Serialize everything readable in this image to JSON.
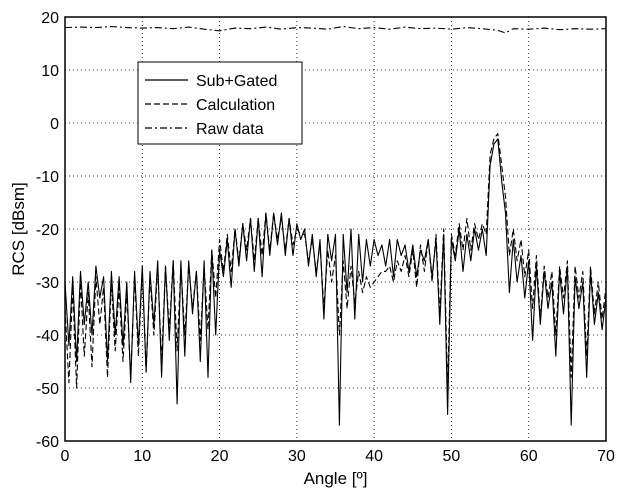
{
  "chart_data": {
    "type": "line",
    "title": "",
    "xlabel": "Angle [º]",
    "ylabel": "RCS [dBsm]",
    "xlim": [
      0,
      70
    ],
    "ylim": [
      -60,
      20
    ],
    "xticks": [
      "0",
      "10",
      "20",
      "30",
      "40",
      "50",
      "60",
      "70"
    ],
    "yticks": [
      "20",
      "10",
      "0",
      "-10",
      "-20",
      "-30",
      "-40",
      "-50",
      "-60"
    ],
    "grid": true,
    "legend_position": "upper-left",
    "series": [
      {
        "name": "Sub+Gated",
        "style": "solid",
        "x": [
          0,
          0.5,
          1,
          1.5,
          2,
          2.5,
          3,
          3.5,
          4,
          4.5,
          5,
          5.5,
          6,
          6.5,
          7,
          7.5,
          8,
          8.5,
          9,
          9.5,
          10,
          10.5,
          11,
          11.5,
          12,
          12.5,
          13,
          13.5,
          14,
          14.5,
          15,
          15.5,
          16,
          16.5,
          17,
          17.5,
          18,
          18.5,
          19,
          19.5,
          20,
          20.5,
          21,
          21.5,
          22,
          22.5,
          23,
          23.5,
          24,
          24.5,
          25,
          25.5,
          26,
          26.5,
          27,
          27.5,
          28,
          28.5,
          29,
          29.5,
          30,
          30.5,
          31,
          31.5,
          32,
          32.5,
          33,
          33.5,
          34,
          34.5,
          35,
          35.5,
          36,
          36.5,
          37,
          37.5,
          38,
          38.5,
          39,
          39.5,
          40,
          40.5,
          41,
          41.5,
          42,
          42.5,
          43,
          43.5,
          44,
          44.5,
          45,
          45.5,
          46,
          46.5,
          47,
          47.5,
          48,
          48.5,
          49,
          49.5,
          50,
          50.5,
          51,
          51.5,
          52,
          52.5,
          53,
          53.5,
          54,
          54.5,
          55,
          55.5,
          56,
          56.5,
          57,
          57.5,
          58,
          58.5,
          59,
          59.5,
          60,
          60.5,
          61,
          61.5,
          62,
          62.5,
          63,
          63.5,
          64,
          64.5,
          65,
          65.5,
          66,
          66.5,
          67,
          67.5,
          68,
          68.5,
          69,
          69.5,
          70
        ],
        "y": [
          -30,
          -42,
          -29,
          -45,
          -28,
          -38,
          -30,
          -40,
          -27,
          -33,
          -29,
          -45,
          -28,
          -40,
          -29,
          -42,
          -30,
          -49,
          -28,
          -42,
          -27,
          -47,
          -28,
          -38,
          -26,
          -48,
          -27,
          -41,
          -26,
          -53,
          -26,
          -44,
          -26,
          -36,
          -28,
          -45,
          -26,
          -48,
          -24,
          -40,
          -24,
          -29,
          -22,
          -31,
          -20,
          -27,
          -19,
          -26,
          -18,
          -28,
          -18,
          -29,
          -17,
          -25,
          -17,
          -23,
          -17,
          -25,
          -18,
          -25,
          -19,
          -22,
          -20,
          -27,
          -21,
          -29,
          -22,
          -37,
          -21,
          -26,
          -21,
          -57,
          -21,
          -32,
          -20,
          -37,
          -21,
          -30,
          -22,
          -27,
          -22,
          -25,
          -23,
          -27,
          -22,
          -29,
          -22,
          -25,
          -23,
          -28,
          -23,
          -29,
          -24,
          -26,
          -22,
          -29,
          -22,
          -38,
          -21,
          -55,
          -22,
          -26,
          -20,
          -28,
          -21,
          -26,
          -20,
          -24,
          -20,
          -25,
          -8,
          -4,
          -3,
          -11,
          -17,
          -32,
          -22,
          -30,
          -25,
          -33,
          -26,
          -41,
          -27,
          -38,
          -28,
          -35,
          -30,
          -44,
          -28,
          -36,
          -27,
          -57,
          -29,
          -35,
          -30,
          -48,
          -28,
          -38,
          -32,
          -39,
          -33
        ]
      },
      {
        "name": "Calculation",
        "style": "dashed",
        "x": [
          0,
          0.5,
          1,
          1.5,
          2,
          2.5,
          3,
          3.5,
          4,
          4.5,
          5,
          5.5,
          6,
          6.5,
          7,
          7.5,
          8,
          8.5,
          9,
          9.5,
          10,
          10.5,
          11,
          11.5,
          12,
          12.5,
          13,
          13.5,
          14,
          14.5,
          15,
          15.5,
          16,
          16.5,
          17,
          17.5,
          18,
          18.5,
          19,
          19.5,
          20,
          20.5,
          21,
          21.5,
          22,
          22.5,
          23,
          23.5,
          24,
          24.5,
          25,
          25.5,
          26,
          26.5,
          27,
          27.5,
          28,
          28.5,
          29,
          29.5,
          30,
          30.5,
          31,
          31.5,
          32,
          32.5,
          33,
          33.5,
          34,
          34.5,
          35,
          35.5,
          36,
          36.5,
          37,
          37.5,
          38,
          38.5,
          39,
          39.5,
          40,
          40.5,
          41,
          41.5,
          42,
          42.5,
          43,
          43.5,
          44,
          44.5,
          45,
          45.5,
          46,
          46.5,
          47,
          47.5,
          48,
          48.5,
          49,
          49.5,
          50,
          50.5,
          51,
          51.5,
          52,
          52.5,
          53,
          53.5,
          54,
          54.5,
          55,
          55.5,
          56,
          56.5,
          57,
          57.5,
          58,
          58.5,
          59,
          59.5,
          60,
          60.5,
          61,
          61.5,
          62,
          62.5,
          63,
          63.5,
          64,
          64.5,
          65,
          65.5,
          66,
          66.5,
          67,
          67.5,
          68,
          68.5,
          69,
          69.5,
          70
        ],
        "y": [
          -35,
          -49,
          -31,
          -50,
          -30,
          -44,
          -32,
          -46,
          -29,
          -38,
          -31,
          -48,
          -30,
          -43,
          -31,
          -45,
          -32,
          -48,
          -29,
          -44,
          -28,
          -47,
          -29,
          -40,
          -27,
          -45,
          -27,
          -39,
          -26,
          -43,
          -27,
          -40,
          -27,
          -35,
          -28,
          -41,
          -27,
          -39,
          -24,
          -33,
          -22,
          -28,
          -21,
          -28,
          -20,
          -26,
          -19,
          -24,
          -18,
          -26,
          -18,
          -25,
          -17,
          -24,
          -17,
          -22,
          -18,
          -24,
          -18,
          -23,
          -20,
          -21,
          -21,
          -26,
          -22,
          -28,
          -23,
          -35,
          -24,
          -30,
          -25,
          -40,
          -26,
          -35,
          -27,
          -34,
          -28,
          -32,
          -29,
          -31,
          -30,
          -29,
          -28,
          -28,
          -27,
          -30,
          -26,
          -28,
          -25,
          -29,
          -24,
          -31,
          -23,
          -28,
          -22,
          -30,
          -21,
          -36,
          -20,
          -50,
          -21,
          -25,
          -19,
          -24,
          -18,
          -24,
          -19,
          -22,
          -19,
          -21,
          -6,
          -3,
          -2,
          -8,
          -14,
          -25,
          -20,
          -26,
          -22,
          -29,
          -24,
          -35,
          -25,
          -37,
          -27,
          -33,
          -28,
          -40,
          -27,
          -33,
          -26,
          -48,
          -27,
          -33,
          -28,
          -44,
          -27,
          -36,
          -30,
          -37,
          -31
        ]
      },
      {
        "name": "Raw data",
        "style": "dashdot",
        "x": [
          0,
          2,
          4,
          6,
          8,
          10,
          12,
          14,
          16,
          18,
          20,
          22,
          24,
          26,
          28,
          30,
          32,
          34,
          36,
          38,
          40,
          42,
          44,
          46,
          48,
          50,
          52,
          54,
          56,
          57,
          58,
          60,
          62,
          64,
          66,
          68,
          70
        ],
        "y": [
          18,
          18.1,
          18,
          18.2,
          18,
          17.9,
          18,
          17.8,
          18.1,
          17.7,
          17.4,
          17.9,
          17.8,
          18.1,
          17.7,
          18,
          17.9,
          17.7,
          18.2,
          17.8,
          18,
          17.7,
          18.1,
          17.8,
          17.9,
          17.7,
          18,
          17.8,
          17.5,
          17,
          17.8,
          17.7,
          17.9,
          17.6,
          17.8,
          17.7,
          17.8
        ]
      }
    ]
  }
}
